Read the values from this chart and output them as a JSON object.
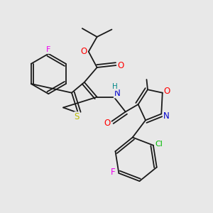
{
  "bg_color": "#e8e8e8",
  "bond_color": "#1a1a1a",
  "atom_colors": {
    "F_top": "#ee00ee",
    "O": "#ff0000",
    "N": "#0000cc",
    "S": "#bbbb00",
    "Cl": "#00bb00",
    "F_bottom": "#ee00ee",
    "H": "#008888"
  },
  "figsize": [
    3.0,
    3.0
  ],
  "dpi": 100
}
